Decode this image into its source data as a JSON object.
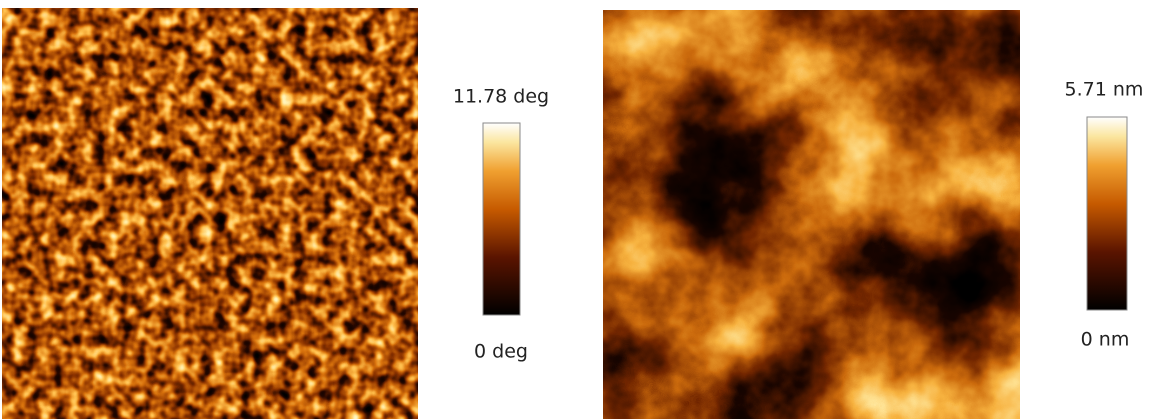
{
  "panels": [
    {
      "max_label": "11.78 deg",
      "min_label": "0 deg"
    },
    {
      "max_label": "5.71 nm",
      "min_label": "0 nm"
    }
  ]
}
